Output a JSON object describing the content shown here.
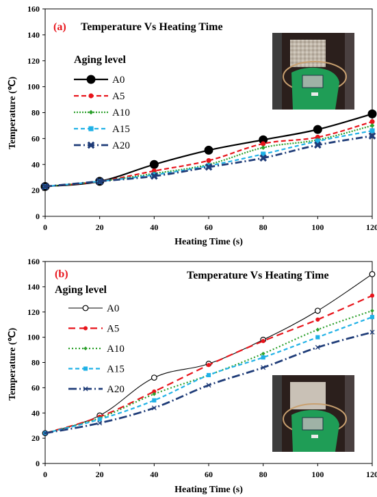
{
  "chart_data": [
    {
      "type": "line",
      "panel_label": "(a)",
      "title": "Temperature Vs Heating Time",
      "xlabel": "Heating Time (s)",
      "ylabel": "Temperature (℃)",
      "xlim": [
        0,
        120
      ],
      "ylim": [
        0,
        160
      ],
      "xticks": [
        0,
        20,
        40,
        60,
        80,
        100,
        120
      ],
      "yticks": [
        0,
        20,
        40,
        60,
        80,
        100,
        120,
        140,
        160
      ],
      "legend_title": "Aging level",
      "legend_position": "left",
      "x": [
        0,
        20,
        40,
        60,
        80,
        100,
        120
      ],
      "series": [
        {
          "name": "A0",
          "values": [
            23,
            27,
            40,
            51,
            59,
            67,
            79
          ],
          "color": "#000000",
          "dash": "",
          "marker": "circle-filled"
        },
        {
          "name": "A5",
          "values": [
            23,
            27,
            35,
            43,
            56,
            61,
            73
          ],
          "color": "#e8141b",
          "dash": "7,4",
          "marker": "dot"
        },
        {
          "name": "A10",
          "values": [
            23,
            27,
            33,
            40,
            53,
            59,
            70
          ],
          "color": "#2ca02c",
          "dash": "2,2",
          "marker": "diamond"
        },
        {
          "name": "A15",
          "values": [
            23,
            27,
            32,
            39,
            48,
            58,
            66
          ],
          "color": "#1fb1e6",
          "dash": "6,4",
          "marker": "square"
        },
        {
          "name": "A20",
          "values": [
            23,
            27,
            31,
            38,
            45,
            55,
            62
          ],
          "color": "#1f3c78",
          "dash": "10,4,2,4",
          "marker": "x-bold"
        }
      ]
    },
    {
      "type": "line",
      "panel_label": "(b)",
      "title": "Temperature Vs Heating Time",
      "xlabel": "Heating Time (s)",
      "ylabel": "Temperature (℃)",
      "xlim": [
        0,
        120
      ],
      "ylim": [
        0,
        160
      ],
      "xticks": [
        0,
        20,
        40,
        60,
        80,
        100,
        120
      ],
      "yticks": [
        0,
        20,
        40,
        60,
        80,
        100,
        120,
        140,
        160
      ],
      "legend_title": "Aging level",
      "legend_position": "left",
      "x": [
        0,
        20,
        40,
        60,
        80,
        100,
        120
      ],
      "series": [
        {
          "name": "A0",
          "values": [
            24,
            38,
            68,
            79,
            98,
            121,
            150
          ],
          "color": "#000000",
          "dash": "",
          "marker": "circle-open"
        },
        {
          "name": "A5",
          "values": [
            24,
            37,
            57,
            78,
            97,
            114,
            133
          ],
          "color": "#e8141b",
          "dash": "10,6",
          "marker": "dot"
        },
        {
          "name": "A10",
          "values": [
            24,
            36,
            55,
            70,
            87,
            106,
            121
          ],
          "color": "#2ca02c",
          "dash": "2,3",
          "marker": "diamond"
        },
        {
          "name": "A15",
          "values": [
            24,
            35,
            50,
            70,
            84,
            100,
            116
          ],
          "color": "#1fb1e6",
          "dash": "6,4",
          "marker": "square"
        },
        {
          "name": "A20",
          "values": [
            24,
            32,
            44,
            62,
            76,
            92,
            104
          ],
          "color": "#1f3c78",
          "dash": "12,4,2,4",
          "marker": "x"
        }
      ]
    }
  ]
}
